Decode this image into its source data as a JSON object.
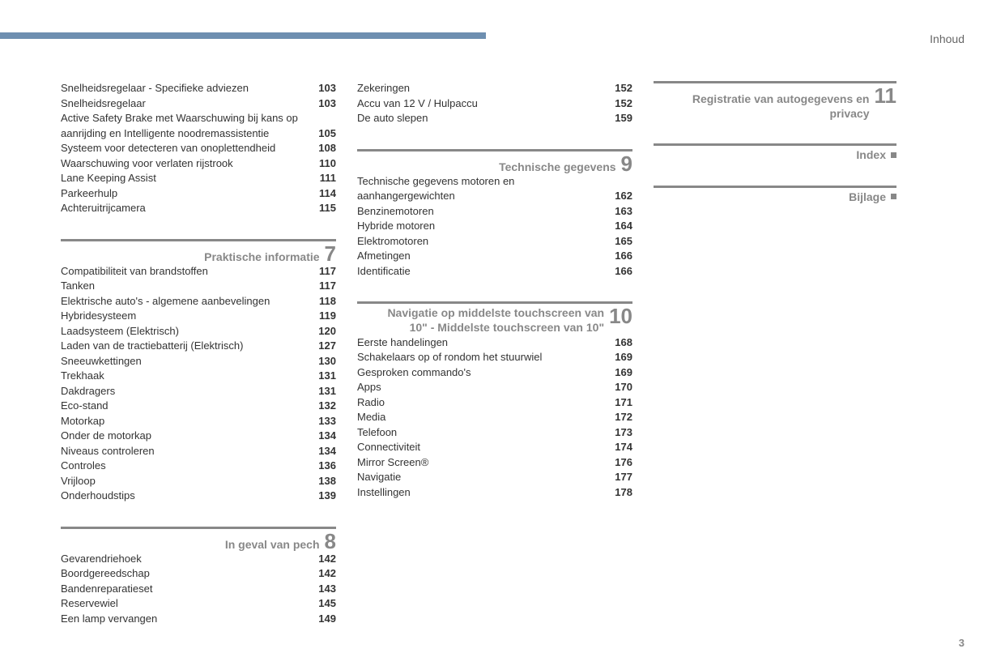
{
  "header": {
    "title": "Inhoud"
  },
  "page_number": "3",
  "colors": {
    "topbar": "#6e8fb0",
    "divider": "#888888",
    "section_title": "#888888",
    "text": "#333333"
  },
  "sections": {
    "preblock": [
      {
        "label": "Snelheidsregelaar - Specifieke adviezen",
        "page": "103"
      },
      {
        "label": "Snelheidsregelaar",
        "page": "103"
      },
      {
        "label": "Active Safety Brake met Waarschuwing bij kans op aanrijding en Intelligente noodremassistentie",
        "page": "105"
      },
      {
        "label": "Systeem voor detecteren van onoplettendheid",
        "page": "108"
      },
      {
        "label": "Waarschuwing voor verlaten rijstrook",
        "page": "110"
      },
      {
        "label": "Lane Keeping Assist",
        "page": "111"
      },
      {
        "label": "Parkeerhulp",
        "page": "114"
      },
      {
        "label": "Achteruitrijcamera",
        "page": "115"
      }
    ],
    "s7": {
      "title": "Praktische informatie",
      "num": "7",
      "items": [
        {
          "label": "Compatibiliteit van brandstoffen",
          "page": "117"
        },
        {
          "label": "Tanken",
          "page": "117"
        },
        {
          "label": "Elektrische auto's - algemene aanbevelingen",
          "page": "118"
        },
        {
          "label": "Hybridesysteem",
          "page": "119"
        },
        {
          "label": "Laadsysteem (Elektrisch)",
          "page": "120"
        },
        {
          "label": "Laden van de tractiebatterij (Elektrisch)",
          "page": "127"
        },
        {
          "label": "Sneeuwkettingen",
          "page": "130"
        },
        {
          "label": "Trekhaak",
          "page": "131"
        },
        {
          "label": "Dakdragers",
          "page": "131"
        },
        {
          "label": "Eco-stand",
          "page": "132"
        },
        {
          "label": "Motorkap",
          "page": "133"
        },
        {
          "label": "Onder de motorkap",
          "page": "134"
        },
        {
          "label": "Niveaus controleren",
          "page": "134"
        },
        {
          "label": "Controles",
          "page": "136"
        },
        {
          "label": "Vrijloop",
          "page": "138"
        },
        {
          "label": "Onderhoudstips",
          "page": "139"
        }
      ]
    },
    "s8": {
      "title": "In geval van pech",
      "num": "8",
      "items": [
        {
          "label": "Gevarendriehoek",
          "page": "142"
        },
        {
          "label": "Boordgereedschap",
          "page": "142"
        },
        {
          "label": "Bandenreparatieset",
          "page": "143"
        },
        {
          "label": "Reservewiel",
          "page": "145"
        },
        {
          "label": "Een lamp vervangen",
          "page": "149"
        }
      ]
    },
    "col2_pre": [
      {
        "label": "Zekeringen",
        "page": "152"
      },
      {
        "label": "Accu van 12 V / Hulpaccu",
        "page": "152"
      },
      {
        "label": "De auto slepen",
        "page": "159"
      }
    ],
    "s9": {
      "title": "Technische gegevens",
      "num": "9",
      "items": [
        {
          "label": "Technische gegevens motoren en aanhangergewichten",
          "page": "162"
        },
        {
          "label": "Benzinemotoren",
          "page": "163"
        },
        {
          "label": "Hybride motoren",
          "page": "164"
        },
        {
          "label": "Elektromotoren",
          "page": "165"
        },
        {
          "label": "Afmetingen",
          "page": "166"
        },
        {
          "label": "Identificatie",
          "page": "166"
        }
      ]
    },
    "s10": {
      "title": "Navigatie op middelste touchscreen van 10\" - Middelste touchscreen van 10\"",
      "num": "10",
      "items": [
        {
          "label": "Eerste handelingen",
          "page": "168"
        },
        {
          "label": "Schakelaars op of rondom het stuurwiel",
          "page": "169"
        },
        {
          "label": "Gesproken commando's",
          "page": "169"
        },
        {
          "label": "Apps",
          "page": "170"
        },
        {
          "label": "Radio",
          "page": "171"
        },
        {
          "label": "Media",
          "page": "172"
        },
        {
          "label": "Telefoon",
          "page": "173"
        },
        {
          "label": "Connectiviteit",
          "page": "174"
        },
        {
          "label": "Mirror Screen®",
          "page": "176"
        },
        {
          "label": "Navigatie",
          "page": "177"
        },
        {
          "label": "Instellingen",
          "page": "178"
        }
      ]
    },
    "s11": {
      "title": "Registratie van autogegevens en privacy",
      "num": "11"
    },
    "index": {
      "title": "Index"
    },
    "bijlage": {
      "title": "Bijlage"
    }
  }
}
